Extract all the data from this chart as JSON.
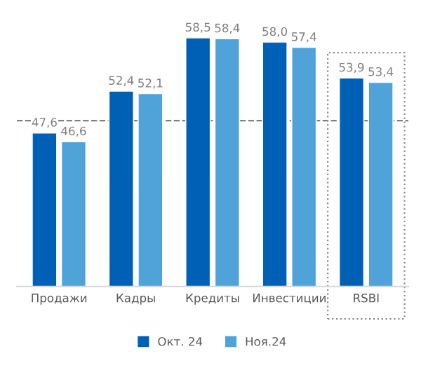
{
  "chart_data": {
    "type": "bar",
    "categories": [
      "Продажи",
      "Кадры",
      "Кредиты",
      "Инвестиции",
      "RSBI"
    ],
    "series": [
      {
        "name": "Окт. 24",
        "color": "#0060b6",
        "values": [
          47.6,
          52.4,
          58.5,
          58.0,
          53.9
        ],
        "value_labels": [
          "47,6",
          "52,4",
          "58,5",
          "58,0",
          "53,9"
        ]
      },
      {
        "name": "Ноя.24",
        "color": "#4fa3d9",
        "values": [
          46.6,
          52.1,
          58.4,
          57.4,
          53.4
        ],
        "value_labels": [
          "46,6",
          "52,1",
          "58,4",
          "57,4",
          "53,4"
        ]
      }
    ],
    "ylim": [
      30,
      58.5
    ],
    "tick_labels": "x",
    "legend": "bottom",
    "grid": false,
    "ref_lines": [
      {
        "axis": "y",
        "value": 49,
        "color": "#7f7f7f",
        "line_style": "dashed"
      }
    ]
  }
}
